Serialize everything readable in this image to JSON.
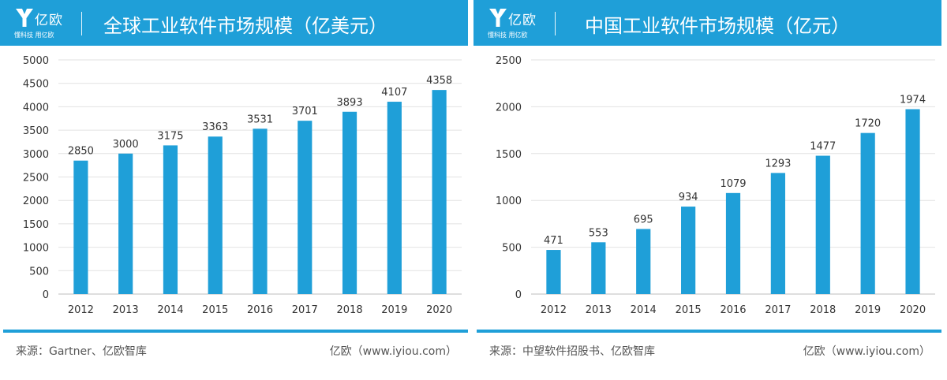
{
  "brand": {
    "name": "亿欧",
    "slogan": "懂科技 用亿欧",
    "color": "#1f9fd8"
  },
  "bar_color": "#1f9fd8",
  "panels": [
    {
      "title": "全球工业软件市场规模（亿美元）",
      "source": "来源：Gartner、亿欧智库",
      "site": "亿欧（www.iyiou.com）"
    },
    {
      "title": "中国工业软件市场规模（亿元）",
      "source": "来源：中望软件招股书、亿欧智库",
      "site": "亿欧（www.iyiou.com）"
    }
  ],
  "chart_data": [
    {
      "type": "bar",
      "title": "全球工业软件市场规模（亿美元）",
      "categories": [
        "2012",
        "2013",
        "2014",
        "2015",
        "2016",
        "2017",
        "2018",
        "2019",
        "2020"
      ],
      "values": [
        2850,
        3000,
        3175,
        3363,
        3531,
        3701,
        3893,
        4107,
        4358
      ],
      "ylim": [
        0,
        5000
      ],
      "yticks": [
        0,
        500,
        1000,
        1500,
        2000,
        2500,
        3000,
        3500,
        4000,
        4500,
        5000
      ],
      "grid": true,
      "data_labels": true
    },
    {
      "type": "bar",
      "title": "中国工业软件市场规模（亿元）",
      "categories": [
        "2012",
        "2013",
        "2014",
        "2015",
        "2016",
        "2017",
        "2018",
        "2019",
        "2020"
      ],
      "values": [
        471,
        553,
        695,
        934,
        1079,
        1293,
        1477,
        1720,
        1974
      ],
      "ylim": [
        0,
        2500
      ],
      "yticks": [
        0,
        500,
        1000,
        1500,
        2000,
        2500
      ],
      "grid": true,
      "data_labels": true
    }
  ]
}
